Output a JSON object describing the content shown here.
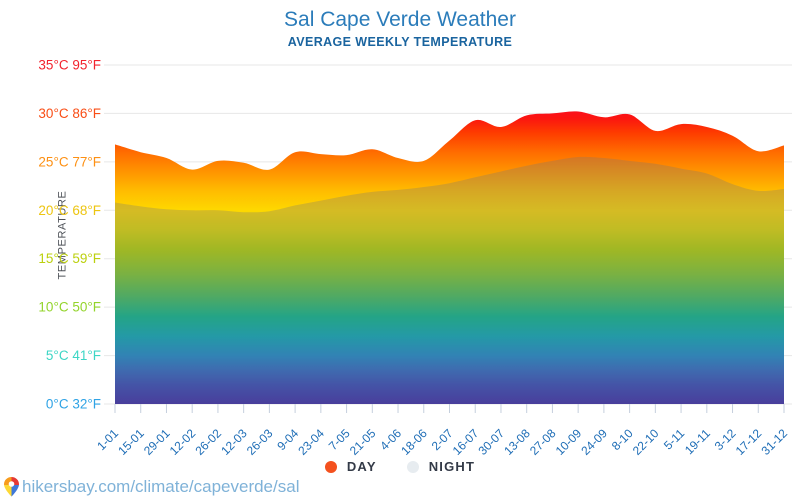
{
  "header": {
    "title": "Sal Cape Verde Weather",
    "subtitle": "AVERAGE WEEKLY TEMPERATURE"
  },
  "y_axis": {
    "title": "TEMPERATURE",
    "labels": [
      {
        "t": 35,
        "text": "35°C 95°F",
        "color": "#f2232e"
      },
      {
        "t": 30,
        "text": "30°C 86°F",
        "color": "#f94d15"
      },
      {
        "t": 25,
        "text": "25°C 77°F",
        "color": "#fd9013"
      },
      {
        "t": 20,
        "text": "20°C 68°F",
        "color": "#edc511"
      },
      {
        "t": 15,
        "text": "15°C 59°F",
        "color": "#bcd00e"
      },
      {
        "t": 10,
        "text": "10°C 50°F",
        "color": "#93d42b"
      },
      {
        "t": 5,
        "text": "5°C 41°F",
        "color": "#3cd6c5"
      },
      {
        "t": 0,
        "text": "0°C 32°F",
        "color": "#2fa3e5"
      }
    ]
  },
  "x_axis": {
    "label_color": "#1e6db6",
    "tick_color": "#c5cfdd",
    "grid_color": "#e7e7e7"
  },
  "legend": {
    "items": [
      {
        "label": "DAY",
        "color": "#f4511e"
      },
      {
        "label": "NIGHT",
        "color": "#e7ecf0"
      }
    ]
  },
  "footer": {
    "url": "hikersbay.com/climate/capeverde/sal",
    "pin_colors": {
      "tl": "#f79c1d",
      "tr": "#e53935",
      "br": "#3f78d8",
      "bl": "#fdd835"
    }
  },
  "chart_data": {
    "type": "area",
    "title": "Sal Cape Verde Weather",
    "subtitle": "AVERAGE WEEKLY TEMPERATURE",
    "unit": "°C",
    "ylim": [
      0,
      35
    ],
    "grid": true,
    "legend_position": "bottom",
    "categories": [
      "1-01",
      "15-01",
      "29-01",
      "12-02",
      "26-02",
      "12-03",
      "26-03",
      "9-04",
      "23-04",
      "7-05",
      "21-05",
      "4-06",
      "18-06",
      "2-07",
      "16-07",
      "30-07",
      "13-08",
      "27-08",
      "10-09",
      "24-09",
      "8-10",
      "22-10",
      "5-11",
      "19-11",
      "3-12",
      "17-12",
      "31-12"
    ],
    "series": [
      {
        "name": "DAY",
        "values": [
          26.8,
          26.0,
          25.4,
          24.2,
          25.1,
          24.9,
          24.2,
          26.0,
          25.8,
          25.7,
          26.3,
          25.4,
          25.1,
          27.2,
          29.3,
          28.6,
          29.8,
          30.0,
          30.2,
          29.6,
          29.9,
          28.2,
          28.9,
          28.6,
          27.7,
          26.1,
          26.7
        ]
      },
      {
        "name": "NIGHT",
        "values": [
          20.8,
          20.4,
          20.1,
          20.0,
          20.0,
          19.8,
          19.9,
          20.5,
          21.0,
          21.5,
          21.9,
          22.1,
          22.4,
          22.8,
          23.4,
          24.0,
          24.6,
          25.1,
          25.5,
          25.4,
          25.1,
          24.8,
          24.3,
          23.8,
          22.7,
          22.0,
          22.2
        ]
      }
    ],
    "y_ticks_c": [
      0,
      5,
      10,
      15,
      20,
      25,
      30,
      35
    ],
    "y_ticks_f": [
      32,
      41,
      50,
      59,
      68,
      77,
      86,
      95
    ],
    "colors": {
      "night_overlay": "rgba(118,118,118,0.30)",
      "rainbow_stops": [
        {
          "t": 31.0,
          "c": "#fa0a28"
        },
        {
          "t": 29.5,
          "c": "#fb1510"
        },
        {
          "t": 28.0,
          "c": "#fe3c00"
        },
        {
          "t": 26.0,
          "c": "#ff6c00"
        },
        {
          "t": 24.0,
          "c": "#ff9400"
        },
        {
          "t": 22.0,
          "c": "#ffbc00"
        },
        {
          "t": 20.0,
          "c": "#fed800"
        },
        {
          "t": 18.0,
          "c": "#e0da00"
        },
        {
          "t": 16.0,
          "c": "#b3d400"
        },
        {
          "t": 13.5,
          "c": "#7ecb2a"
        },
        {
          "t": 11.0,
          "c": "#3cbf5e"
        },
        {
          "t": 9.0,
          "c": "#00b88e"
        },
        {
          "t": 7.0,
          "c": "#00a9bb"
        },
        {
          "t": 5.0,
          "c": "#1488cf"
        },
        {
          "t": 3.5,
          "c": "#2766c8"
        },
        {
          "t": 2.0,
          "c": "#2f46bc"
        },
        {
          "t": 0.0,
          "c": "#3526ac"
        }
      ]
    }
  }
}
